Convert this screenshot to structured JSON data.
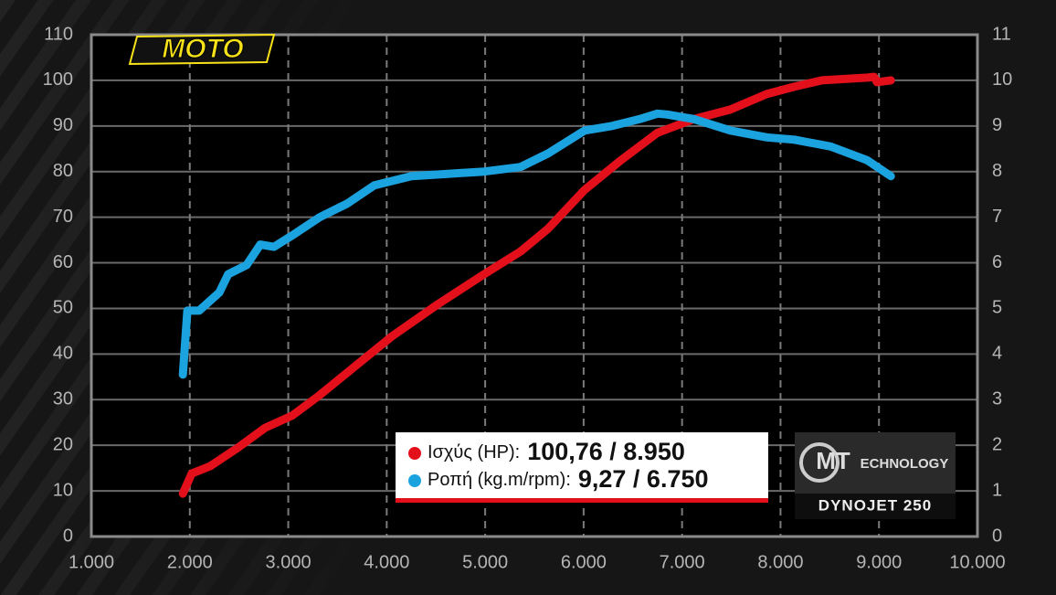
{
  "chart_data": {
    "type": "line",
    "brand": "MOTO",
    "badge": {
      "mark": "MT",
      "text": "ECHNOLOGY",
      "model": "DYNOJET 250"
    },
    "xlim": [
      1000,
      10000
    ],
    "xticks": [
      {
        "value": 1000,
        "label": "1.000"
      },
      {
        "value": 2000,
        "label": "2.000"
      },
      {
        "value": 3000,
        "label": "3.000"
      },
      {
        "value": 4000,
        "label": "4.000"
      },
      {
        "value": 5000,
        "label": "5.000"
      },
      {
        "value": 6000,
        "label": "6.000"
      },
      {
        "value": 7000,
        "label": "7.000"
      },
      {
        "value": 8000,
        "label": "8.000"
      },
      {
        "value": 9000,
        "label": "9.000"
      },
      {
        "value": 10000,
        "label": "10.000"
      }
    ],
    "ylim": [
      0,
      110
    ],
    "yticks": [
      0,
      10,
      20,
      30,
      40,
      50,
      60,
      70,
      80,
      90,
      100,
      110
    ],
    "y2lim": [
      0,
      11
    ],
    "y2ticks": [
      0,
      1,
      2,
      3,
      4,
      5,
      6,
      7,
      8,
      9,
      10,
      11
    ],
    "grid": true,
    "series": [
      {
        "name": "Ισχύς (HP):",
        "summary": "100,76 / 8.950",
        "color": "#e3101c",
        "x": [
          1930,
          2020,
          2206,
          2484,
          2763,
          3040,
          3320,
          3690,
          4060,
          4525,
          4990,
          5360,
          5640,
          6010,
          6380,
          6750,
          7120,
          7490,
          7860,
          8140,
          8420,
          8885,
          8950,
          8980,
          9120
        ],
        "values": [
          9.4,
          13.8,
          15.4,
          19.4,
          23.8,
          26.5,
          31,
          37.5,
          44,
          51,
          57.5,
          62.5,
          67.5,
          76,
          82.5,
          88.5,
          91.5,
          93.6,
          97,
          98.6,
          100,
          100.6,
          100.76,
          99.6,
          100
        ]
      },
      {
        "name": "Ροπή (kg.m/rpm):",
        "summary": "9,27 / 6.750",
        "color": "#1ba3e0",
        "axis": "y2",
        "x": [
          1930,
          1975,
          2095,
          2300,
          2390,
          2577,
          2716,
          2855,
          3040,
          3320,
          3600,
          3875,
          4250,
          4620,
          4990,
          5360,
          5640,
          6010,
          6290,
          6570,
          6750,
          6850,
          7120,
          7490,
          7860,
          8140,
          8510,
          8880,
          9120
        ],
        "values": [
          3.55,
          4.95,
          4.95,
          5.35,
          5.75,
          5.95,
          6.4,
          6.35,
          6.6,
          7.0,
          7.3,
          7.7,
          7.9,
          7.95,
          8.0,
          8.1,
          8.4,
          8.9,
          9.0,
          9.15,
          9.27,
          9.25,
          9.15,
          8.9,
          8.75,
          8.7,
          8.55,
          8.25,
          7.9
        ]
      }
    ]
  }
}
